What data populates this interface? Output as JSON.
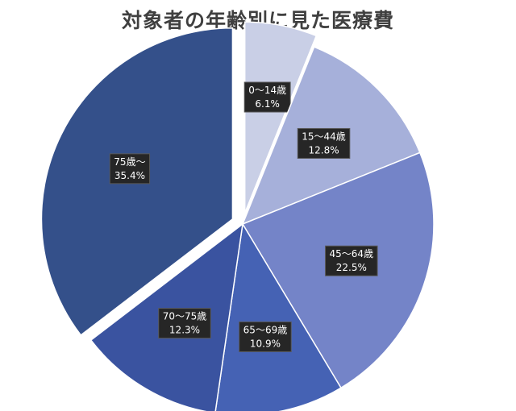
{
  "chart_data": {
    "type": "pie",
    "title": "対象者の年齢別に見た医療費",
    "start_angle_deg": 0,
    "direction": "clockwise",
    "exploded": [
      "0〜14歳",
      "75歳〜"
    ],
    "slices": [
      {
        "label": "0〜14歳",
        "value": 6.1,
        "value_label": "6.1%",
        "color": "#c9cfe6"
      },
      {
        "label": "15〜44歳",
        "value": 12.8,
        "value_label": "12.8%",
        "color": "#a6b0da"
      },
      {
        "label": "45〜64歳",
        "value": 22.5,
        "value_label": "22.5%",
        "color": "#7484c8"
      },
      {
        "label": "65〜69歳",
        "value": 10.9,
        "value_label": "10.9%",
        "color": "#4562b4"
      },
      {
        "label": "70〜75歳",
        "value": 12.3,
        "value_label": "12.3%",
        "color": "#3a53a0"
      },
      {
        "label": "75歳〜",
        "value": 35.4,
        "value_label": "35.4%",
        "color": "#34508a"
      }
    ]
  }
}
